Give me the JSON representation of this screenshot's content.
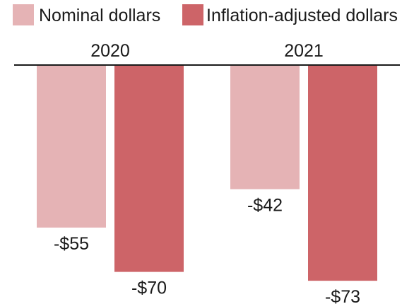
{
  "chart_data": {
    "type": "bar",
    "categories": [
      "2020",
      "2021"
    ],
    "series": [
      {
        "name": "Nominal dollars",
        "color": "#e5b3b5",
        "values": [
          -55,
          -42
        ],
        "labels": [
          "-$55",
          "-$42"
        ]
      },
      {
        "name": "Inflation-adjusted dollars",
        "color": "#cd6468",
        "values": [
          -70,
          -73
        ],
        "labels": [
          "-$70",
          "-$73"
        ]
      }
    ],
    "ylim": [
      -80,
      0
    ],
    "legend": "top",
    "grid": false
  }
}
